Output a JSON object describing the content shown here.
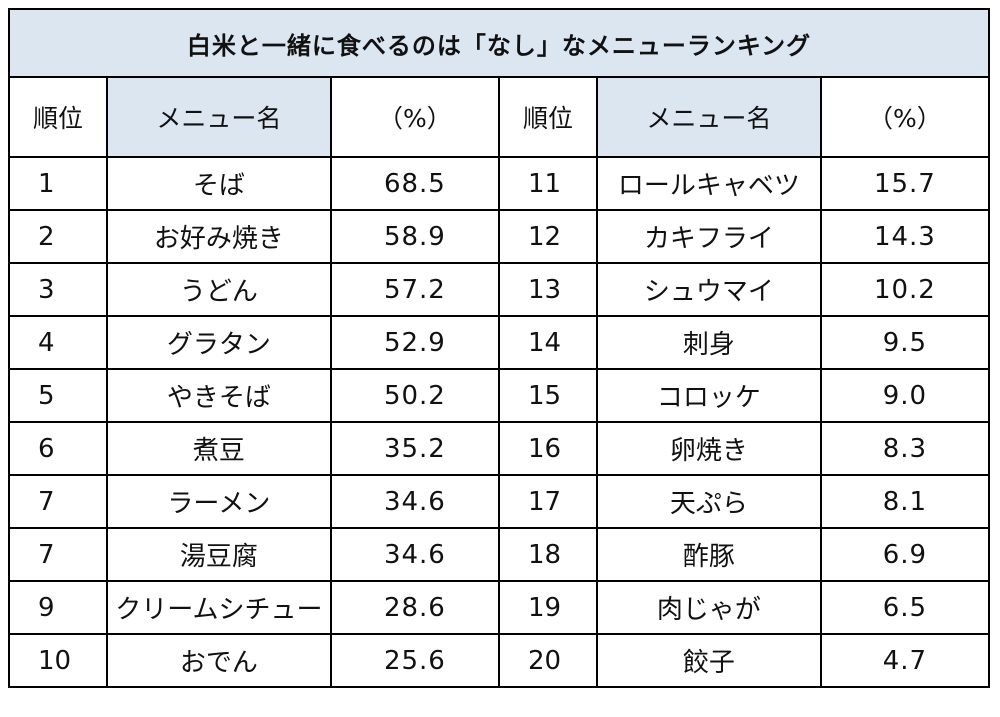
{
  "title": "白米と一緒に食べるのは「なし」なメニューランキング",
  "headers": {
    "rank": "順位",
    "menu": "メニュー名",
    "percent": "（%）"
  },
  "rows": [
    {
      "left": {
        "rank": "1",
        "menu": "そば",
        "percent": "68.5"
      },
      "right": {
        "rank": "11",
        "menu": "ロールキャベツ",
        "percent": "15.7"
      }
    },
    {
      "left": {
        "rank": "2",
        "menu": "お好み焼き",
        "percent": "58.9"
      },
      "right": {
        "rank": "12",
        "menu": "カキフライ",
        "percent": "14.3"
      }
    },
    {
      "left": {
        "rank": "3",
        "menu": "うどん",
        "percent": "57.2"
      },
      "right": {
        "rank": "13",
        "menu": "シュウマイ",
        "percent": "10.2"
      }
    },
    {
      "left": {
        "rank": "4",
        "menu": "グラタン",
        "percent": "52.9"
      },
      "right": {
        "rank": "14",
        "menu": "刺身",
        "percent": "9.5"
      }
    },
    {
      "left": {
        "rank": "5",
        "menu": "やきそば",
        "percent": "50.2"
      },
      "right": {
        "rank": "15",
        "menu": "コロッケ",
        "percent": "9.0"
      }
    },
    {
      "left": {
        "rank": "6",
        "menu": "煮豆",
        "percent": "35.2"
      },
      "right": {
        "rank": "16",
        "menu": "卵焼き",
        "percent": "8.3"
      }
    },
    {
      "left": {
        "rank": "7",
        "menu": "ラーメン",
        "percent": "34.6"
      },
      "right": {
        "rank": "17",
        "menu": "天ぷら",
        "percent": "8.1"
      }
    },
    {
      "left": {
        "rank": "7",
        "menu": "湯豆腐",
        "percent": "34.6"
      },
      "right": {
        "rank": "18",
        "menu": "酢豚",
        "percent": "6.9"
      }
    },
    {
      "left": {
        "rank": "9",
        "menu": "クリームシチュー",
        "percent": "28.6"
      },
      "right": {
        "rank": "19",
        "menu": "肉じゃが",
        "percent": "6.5"
      }
    },
    {
      "left": {
        "rank": "10",
        "menu": "おでん",
        "percent": "25.6"
      },
      "right": {
        "rank": "20",
        "menu": "餃子",
        "percent": "4.7"
      }
    }
  ],
  "colors": {
    "header_bg": "#dce6f1",
    "border": "#000000"
  }
}
